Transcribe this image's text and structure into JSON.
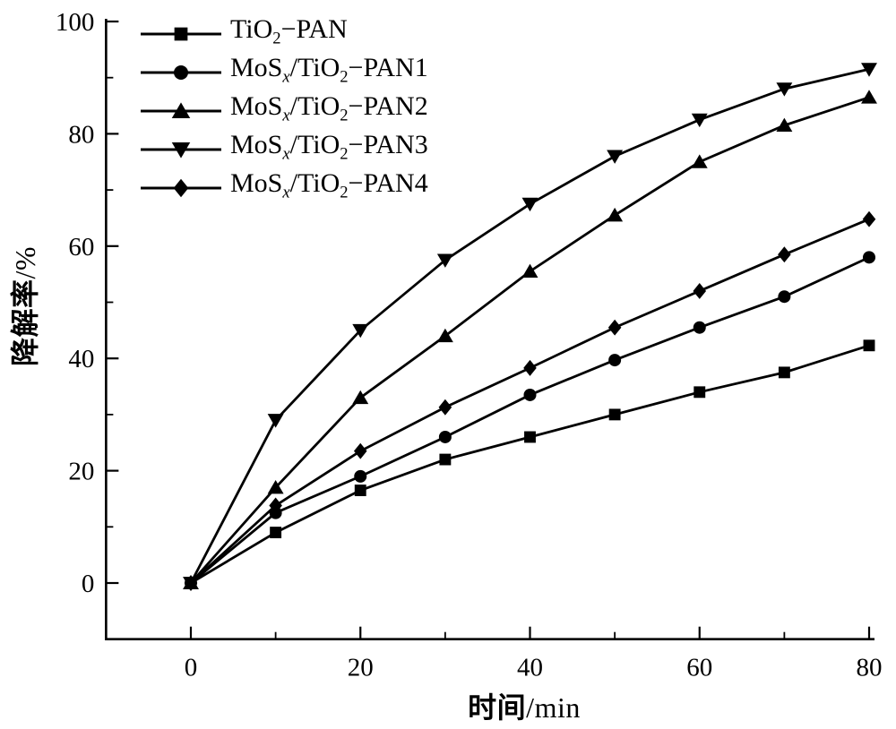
{
  "figure": {
    "background": "#ffffff",
    "ink": "#000000"
  },
  "axis_titles": {
    "x_cjk": "时间",
    "x_unit": "/min",
    "y_cjk": "降解率",
    "y_unit": "/%"
  },
  "chart_data": {
    "type": "line",
    "xlabel": "时间/min",
    "ylabel": "降解率/%",
    "x": [
      0,
      10,
      20,
      30,
      40,
      50,
      60,
      70,
      80
    ],
    "xlim": [
      -10,
      80
    ],
    "ylim": [
      -10,
      100
    ],
    "x_major_ticks": [
      0,
      20,
      40,
      60,
      80
    ],
    "x_minor_ticks": [
      10,
      30,
      50,
      70
    ],
    "y_major_ticks": [
      0,
      20,
      40,
      60,
      80,
      100
    ],
    "y_minor_ticks": [
      10,
      30,
      50,
      70,
      90
    ],
    "grid": false,
    "legend_position": "top-left-inside",
    "series": [
      {
        "name": "TiO2-PAN",
        "marker": "square",
        "values": [
          0,
          9,
          16.5,
          22,
          26,
          30,
          34,
          37.5,
          42.3
        ],
        "label_parts": [
          {
            "t": "TiO"
          },
          {
            "t": "2",
            "sub": true
          },
          {
            "t": "−PAN"
          }
        ]
      },
      {
        "name": "MoSx/TiO2-PAN1",
        "marker": "circle",
        "values": [
          0,
          12.5,
          19,
          26,
          33.5,
          39.7,
          45.5,
          51,
          58
        ],
        "label_parts": [
          {
            "t": "MoS"
          },
          {
            "t": "x",
            "sub": true,
            "i": true
          },
          {
            "t": "/TiO"
          },
          {
            "t": "2",
            "sub": true
          },
          {
            "t": "−PAN1"
          }
        ]
      },
      {
        "name": "MoSx/TiO2-PAN2",
        "marker": "triangle-up",
        "values": [
          0,
          17,
          33,
          44,
          55.5,
          65.5,
          75,
          81.5,
          86.5
        ],
        "label_parts": [
          {
            "t": "MoS"
          },
          {
            "t": "x",
            "sub": true,
            "i": true
          },
          {
            "t": "/TiO"
          },
          {
            "t": "2",
            "sub": true
          },
          {
            "t": "−PAN2"
          }
        ]
      },
      {
        "name": "MoSx/TiO2-PAN3",
        "marker": "triangle-down",
        "values": [
          0,
          29,
          45,
          57.5,
          67.5,
          76,
          82.5,
          88,
          91.5
        ],
        "label_parts": [
          {
            "t": "MoS"
          },
          {
            "t": "x",
            "sub": true,
            "i": true
          },
          {
            "t": "/TiO"
          },
          {
            "t": "2",
            "sub": true
          },
          {
            "t": "−PAN3"
          }
        ]
      },
      {
        "name": "MoSx/TiO2-PAN4",
        "marker": "diamond",
        "values": [
          0,
          13.8,
          23.5,
          31.3,
          38.3,
          45.5,
          52,
          58.5,
          64.8
        ],
        "label_parts": [
          {
            "t": "MoS"
          },
          {
            "t": "x",
            "sub": true,
            "i": true
          },
          {
            "t": "/TiO"
          },
          {
            "t": "2",
            "sub": true
          },
          {
            "t": "−PAN4"
          }
        ]
      }
    ]
  }
}
